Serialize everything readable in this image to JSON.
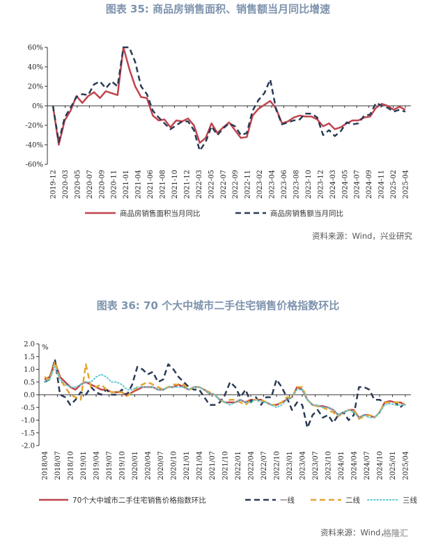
{
  "charts_text": {
    "title1": "图表 35: 商品房销售面积、销售额当月同比增速",
    "source1": "资料来源：Wind，兴业研究",
    "title2": "图表 36: 70 个大中城市二手住宅销售价格指数环比",
    "source2": "资料来源：Wind，",
    "watermark": "格隆汇"
  },
  "chart_data": [
    {
      "type": "line",
      "title": "图表 35: 商品房销售面积、销售额当月同比增速",
      "yunit": "%",
      "ylim": [
        -60,
        60
      ],
      "yticks": [
        "60%",
        "40%",
        "20%",
        "0%",
        "-20%",
        "-40%",
        "-60%"
      ],
      "xticks": [
        "2019-12",
        "2020-03",
        "2020-05",
        "2020-07",
        "2020-09",
        "2020-11",
        "2021-01",
        "2021-04",
        "2021-06",
        "2021-08",
        "2021-10",
        "2021-12",
        "2022-03",
        "2022-05",
        "2022-07",
        "2022-09",
        "2022-11",
        "2023-02",
        "2023-04",
        "2023-06",
        "2023-08",
        "2023-10",
        "2023-12",
        "2024-03",
        "2024-05",
        "2024-07",
        "2024-09",
        "2024-11",
        "2025-02",
        "2025-04"
      ],
      "series": [
        {
          "name": "商品房销售面积当月同比",
          "color": "#c0444d",
          "dash": "solid",
          "values": [
            0,
            -40,
            -15,
            -5,
            10,
            3,
            10,
            14,
            8,
            15,
            13,
            11,
            60,
            38,
            20,
            9,
            8,
            -10,
            -15,
            -14,
            -22,
            -15,
            -16,
            -13,
            -20,
            -38,
            -33,
            -18,
            -28,
            -22,
            -17,
            -25,
            -33,
            -32,
            -10,
            -3,
            1,
            5,
            -3,
            -18,
            -16,
            -12,
            -10,
            -11,
            -11,
            -14,
            -21,
            -18,
            -24,
            -22,
            -18,
            -15,
            -15,
            -12,
            -11,
            -2,
            2,
            0,
            -4,
            -1,
            -4
          ]
        },
        {
          "name": "商品房销售额当月同比",
          "color": "#2a3b55",
          "dash": "dashed",
          "values": [
            0,
            -37,
            -12,
            -2,
            9,
            12,
            11,
            22,
            25,
            18,
            25,
            20,
            60,
            60,
            45,
            20,
            12,
            -5,
            -12,
            -18,
            -24,
            -20,
            -16,
            -16,
            -25,
            -46,
            -37,
            -21,
            -30,
            -23,
            -18,
            -21,
            -30,
            -28,
            -5,
            6,
            13,
            27,
            -4,
            -19,
            -17,
            -15,
            -14,
            -8,
            -8,
            -12,
            -30,
            -25,
            -31,
            -26,
            -17,
            -19,
            -18,
            -10,
            -9,
            3,
            0,
            -2,
            -6,
            -4,
            -6
          ]
        }
      ]
    },
    {
      "type": "line",
      "title": "图表 36: 70 个大中城市二手住宅销售价格指数环比",
      "yunit": "%",
      "ylim": [
        -2.0,
        2.0
      ],
      "yticks": [
        "2.0",
        "1.5",
        "1.0",
        "0.5",
        "0.0",
        "-0.5",
        "-1.0",
        "-1.5",
        "-2.0"
      ],
      "xticks": [
        "2018/04",
        "2018/07",
        "2018/10",
        "2019/01",
        "2019/04",
        "2019/07",
        "2019/10",
        "2020/01",
        "2020/04",
        "2020/07",
        "2020/10",
        "2021/01",
        "2021/04",
        "2021/07",
        "2021/10",
        "2022/01",
        "2022/04",
        "2022/07",
        "2022/10",
        "2023/01",
        "2023/04",
        "2023/07",
        "2023/10",
        "2024/01",
        "2024/04",
        "2024/07",
        "2024/10",
        "2025/01",
        "2025/04"
      ],
      "series": [
        {
          "name": "70个大中城市二手住宅销售价格指数环比",
          "color": "#c0444d",
          "dash": "solid",
          "values": [
            0.6,
            0.7,
            1.3,
            0.7,
            0.5,
            0.3,
            0.2,
            0.4,
            0.5,
            0.4,
            0.3,
            0.2,
            0.2,
            0.1,
            0.1,
            0.1,
            -0.05,
            0.1,
            0.2,
            0.3,
            0.3,
            0.3,
            0.2,
            0.2,
            0.3,
            0.3,
            0.4,
            0.3,
            0.2,
            0.3,
            0.3,
            0.2,
            0.05,
            0.0,
            -0.2,
            -0.3,
            -0.3,
            -0.3,
            -0.2,
            -0.3,
            -0.2,
            -0.2,
            -0.2,
            -0.3,
            -0.4,
            -0.4,
            -0.3,
            -0.2,
            -0.1,
            0.3,
            0.2,
            -0.2,
            -0.4,
            -0.45,
            -0.45,
            -0.5,
            -0.6,
            -0.8,
            -0.7,
            -0.6,
            -0.6,
            -0.9,
            -0.8,
            -0.8,
            -0.9,
            -0.7,
            -0.3,
            -0.25,
            -0.3,
            -0.3,
            -0.4
          ]
        },
        {
          "name": "一线",
          "color": "#2a3b55",
          "dash": "dashed",
          "values": [
            0.5,
            0.6,
            1.4,
            0.0,
            -0.1,
            -0.4,
            -0.2,
            0.1,
            0.0,
            0.3,
            0.1,
            0.0,
            0.2,
            0.0,
            0.0,
            0.2,
            0.0,
            0.4,
            1.1,
            1.0,
            0.8,
            0.9,
            0.5,
            0.6,
            1.2,
            1.0,
            0.7,
            0.5,
            0.3,
            0.2,
            0.2,
            -0.1,
            -0.4,
            -0.4,
            -0.3,
            0.0,
            0.5,
            0.3,
            -0.1,
            0.2,
            -0.3,
            -0.1,
            -0.4,
            -0.1,
            -0.1,
            0.6,
            0.3,
            -0.1,
            -0.6,
            -0.3,
            -0.4,
            -1.3,
            -0.8,
            -0.6,
            -0.9,
            -0.8,
            -1.1,
            -0.8,
            -0.7,
            -1.0,
            -0.8,
            0.3,
            0.3,
            0.2,
            -0.2,
            -0.2,
            -0.3,
            -0.3,
            -0.3,
            -0.5,
            -0.3
          ]
        },
        {
          "name": "二线",
          "color": "#e3a531",
          "dash": "dashed",
          "values": [
            0.7,
            0.6,
            1.3,
            0.6,
            0.3,
            0.0,
            -0.1,
            -0.2,
            1.2,
            0.3,
            0.3,
            0.4,
            0.2,
            0.1,
            0.1,
            0.1,
            -0.05,
            0.1,
            0.3,
            0.4,
            0.5,
            0.4,
            0.3,
            0.2,
            0.3,
            0.4,
            0.4,
            0.4,
            0.2,
            0.3,
            0.3,
            0.2,
            0.1,
            0.0,
            -0.2,
            -0.3,
            -0.2,
            -0.2,
            -0.3,
            -0.4,
            -0.2,
            -0.2,
            -0.2,
            -0.3,
            -0.4,
            -0.4,
            -0.3,
            -0.1,
            -0.1,
            0.3,
            0.3,
            -0.2,
            -0.4,
            -0.45,
            -0.5,
            -0.6,
            -0.7,
            -0.85,
            -0.7,
            -0.6,
            -0.6,
            -0.95,
            -0.85,
            -0.8,
            -0.9,
            -0.7,
            -0.3,
            -0.3,
            -0.3,
            -0.3,
            -0.4
          ]
        },
        {
          "name": "三线",
          "color": "#5fc9d4",
          "dash": "dotted",
          "values": [
            0.5,
            0.6,
            1.1,
            0.6,
            0.4,
            0.3,
            0.3,
            0.4,
            0.5,
            0.5,
            0.7,
            0.8,
            0.7,
            0.5,
            0.5,
            0.4,
            0.2,
            0.2,
            0.3,
            0.3,
            0.3,
            0.3,
            0.2,
            0.2,
            0.3,
            0.3,
            0.3,
            0.3,
            0.2,
            0.3,
            0.3,
            0.2,
            0.05,
            0.0,
            -0.2,
            -0.3,
            -0.4,
            -0.3,
            -0.2,
            -0.3,
            -0.3,
            -0.2,
            -0.3,
            -0.3,
            -0.4,
            -0.5,
            -0.4,
            -0.2,
            -0.1,
            0.2,
            0.2,
            -0.2,
            -0.4,
            -0.4,
            -0.5,
            -0.5,
            -0.6,
            -0.8,
            -0.7,
            -0.6,
            -0.7,
            -0.9,
            -0.8,
            -0.9,
            -0.9,
            -0.7,
            -0.4,
            -0.35,
            -0.4,
            -0.4,
            -0.4
          ]
        }
      ]
    }
  ]
}
